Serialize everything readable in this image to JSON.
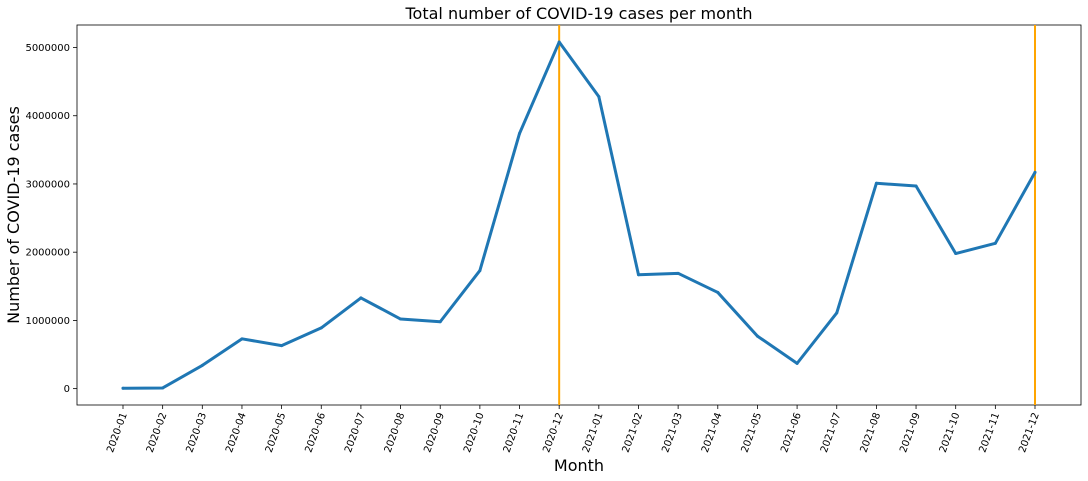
{
  "chart_data": {
    "type": "line",
    "title": "Total number of COVID-19 cases per month",
    "xlabel": "Month",
    "ylabel": "Number of COVID-19 cases",
    "categories": [
      "2020-01",
      "2020-02",
      "2020-03",
      "2020-04",
      "2020-05",
      "2020-06",
      "2020-07",
      "2020-08",
      "2020-09",
      "2020-10",
      "2020-11",
      "2020-12",
      "2021-01",
      "2021-02",
      "2021-03",
      "2021-04",
      "2021-05",
      "2021-06",
      "2021-07",
      "2021-08",
      "2021-09",
      "2021-10",
      "2021-11",
      "2021-12"
    ],
    "values": [
      5000,
      10000,
      340000,
      730000,
      630000,
      890000,
      1330000,
      1020000,
      980000,
      1730000,
      3740000,
      5080000,
      4280000,
      1670000,
      1690000,
      1410000,
      770000,
      370000,
      1110000,
      3010000,
      2970000,
      1980000,
      2130000,
      3170000
    ],
    "ylim": [
      -240000,
      5330000
    ],
    "yticks": [
      0,
      1000000,
      2000000,
      3000000,
      4000000,
      5000000
    ],
    "ytick_labels": [
      "0",
      "1000000",
      "2000000",
      "3000000",
      "4000000",
      "5000000"
    ],
    "vlines": [
      "2020-12",
      "2021-12"
    ],
    "colors": {
      "line": "#1f77b4",
      "vline": "#ffa500"
    },
    "grid": false,
    "legend": "none"
  }
}
